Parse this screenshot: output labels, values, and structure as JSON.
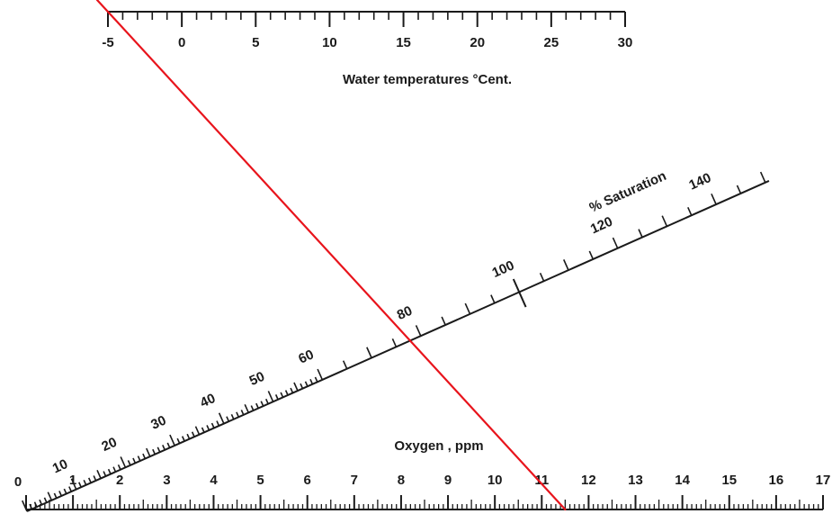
{
  "colors": {
    "ink": "#1a1a1a",
    "isopleth": "#e8141c",
    "background": "#ffffff"
  },
  "temperature_scale": {
    "title": "Water temperatures °Cent.",
    "min": -5,
    "max": 30,
    "labels": [
      "-5",
      "0",
      "5",
      "10",
      "15",
      "20",
      "25",
      "30"
    ]
  },
  "saturation_scale": {
    "title": "% Saturation",
    "min": 0,
    "max": 150,
    "labels": [
      "10",
      "20",
      "30",
      "40",
      "50",
      "60",
      "80",
      "100",
      "120",
      "140"
    ]
  },
  "oxygen_scale": {
    "title": "Oxygen , ppm",
    "min": 0,
    "max": 17,
    "labels": [
      "0",
      "1",
      "2",
      "3",
      "4",
      "5",
      "6",
      "7",
      "8",
      "9",
      "10",
      "11",
      "12",
      "13",
      "14",
      "15",
      "16",
      "17"
    ]
  },
  "isopleth": {
    "temperature": -5,
    "saturation": 71,
    "oxygen": 11.5
  }
}
